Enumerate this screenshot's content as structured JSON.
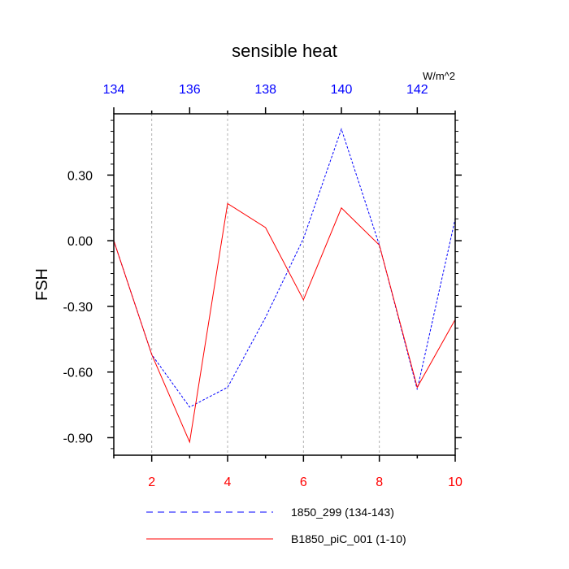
{
  "chart_data": {
    "type": "line",
    "title": "sensible heat",
    "units": "W/m^2",
    "ylabel": "FSH",
    "ylim": [
      -0.98,
      0.58
    ],
    "y_ticks": [
      -0.9,
      -0.6,
      -0.3,
      0.0,
      0.3
    ],
    "y_tick_labels": [
      "-0.90",
      "-0.60",
      "-0.30",
      "0.00",
      "0.30"
    ],
    "x_bottom": {
      "range": [
        1,
        10
      ],
      "ticks": [
        2,
        4,
        6,
        8,
        10
      ],
      "tick_labels": [
        "2",
        "4",
        "6",
        "8",
        "10"
      ],
      "color": "#ff0000"
    },
    "x_top": {
      "range": [
        134,
        143
      ],
      "ticks": [
        134,
        136,
        138,
        140,
        142
      ],
      "tick_labels": [
        "134",
        "136",
        "138",
        "140",
        "142"
      ],
      "color": "#0000ff"
    },
    "grid": "vertical-dashed",
    "series": [
      {
        "name": "1850_299 (134-143)",
        "axis": "top",
        "style": "dashed",
        "color": "#0000ff",
        "x": [
          134,
          135,
          136,
          137,
          138,
          139,
          140,
          141,
          142,
          143
        ],
        "values": [
          0.0,
          -0.52,
          -0.76,
          -0.67,
          -0.35,
          0.01,
          0.51,
          -0.02,
          -0.68,
          0.1
        ]
      },
      {
        "name": "B1850_piC_001 (1-10)",
        "axis": "bottom",
        "style": "solid",
        "color": "#ff0000",
        "x": [
          1,
          2,
          3,
          4,
          5,
          6,
          7,
          8,
          9,
          10
        ],
        "values": [
          0.0,
          -0.52,
          -0.92,
          0.17,
          0.06,
          -0.27,
          0.15,
          -0.02,
          -0.67,
          -0.36
        ]
      }
    ]
  }
}
